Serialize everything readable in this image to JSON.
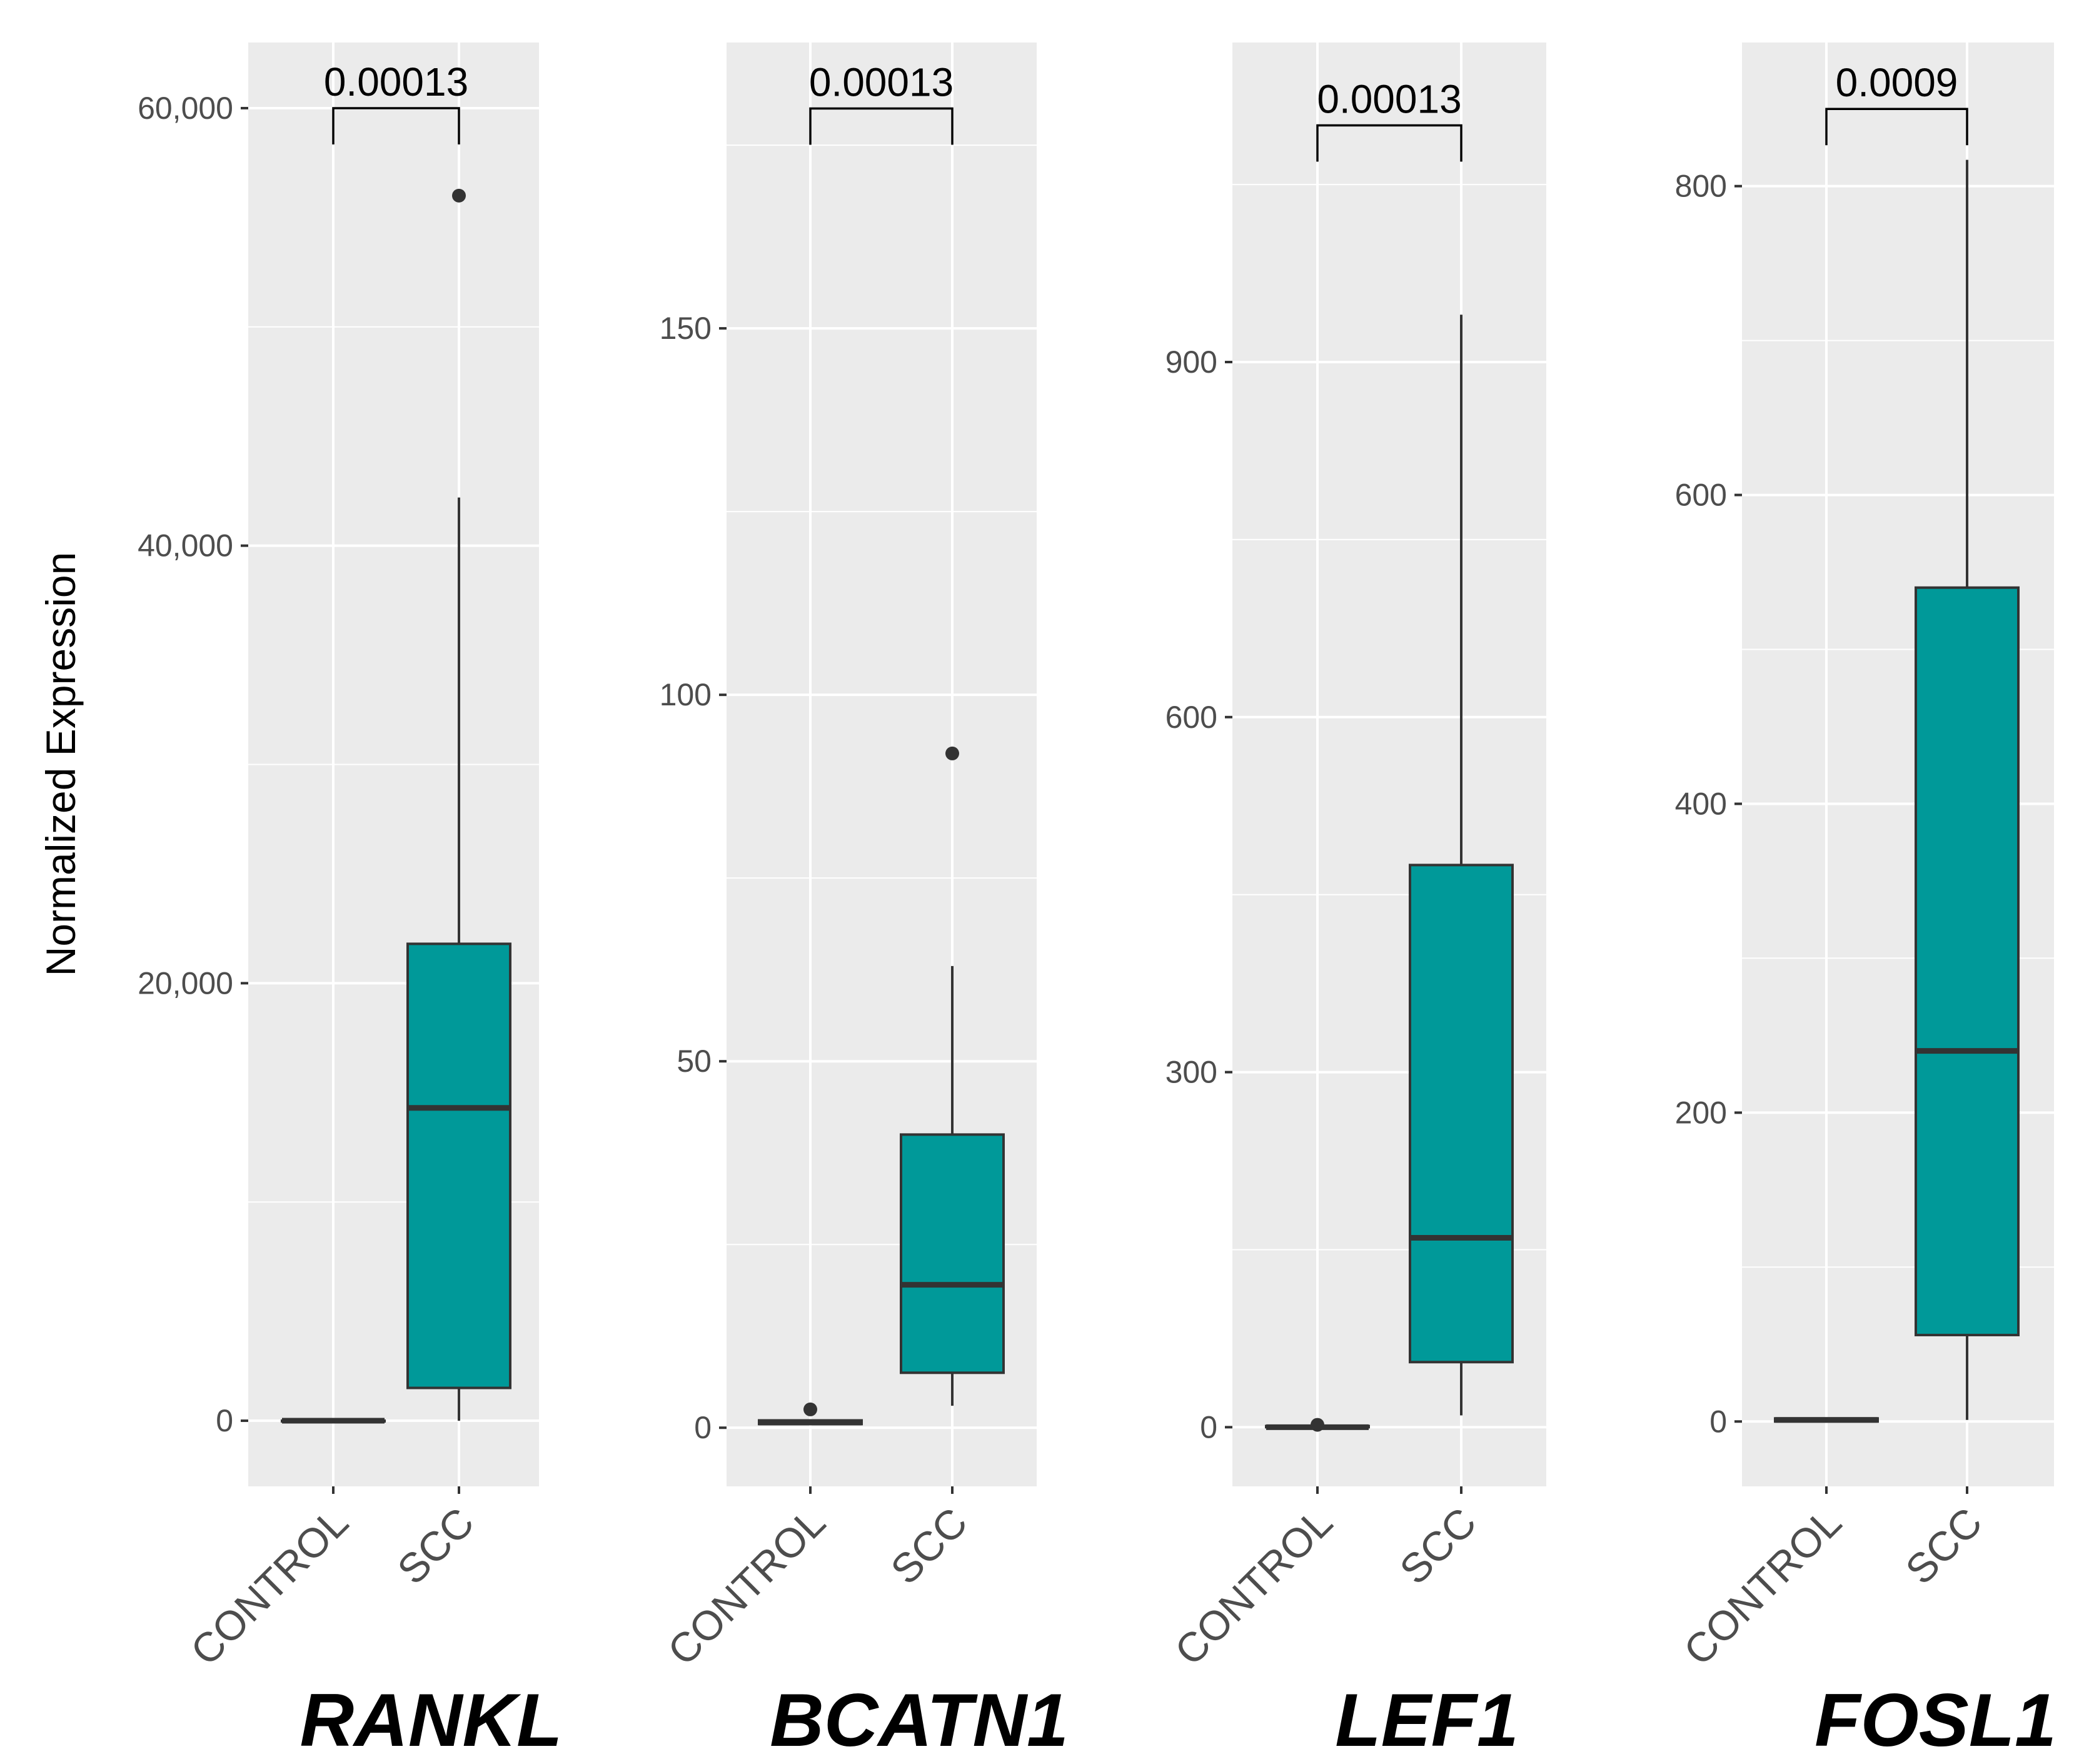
{
  "figure": {
    "ylabel": "Normalized Expression",
    "colors": {
      "panel_bg": "#ebebeb",
      "grid": "#ffffff",
      "box_fill": "#009999",
      "box_line": "#333333",
      "tick_text": "#4d4d4d"
    }
  },
  "chart_data": [
    {
      "type": "box",
      "title": "RANKL",
      "categories": [
        "CONTROL",
        "SCC"
      ],
      "ylim": [
        -3000,
        63000
      ],
      "yticks": [
        0,
        20000,
        40000,
        60000
      ],
      "ytick_labels": [
        "0",
        "20,000",
        "40,000",
        "60,000"
      ],
      "boxes": [
        {
          "group": "CONTROL",
          "whisker_low": 0,
          "q1": 0,
          "median": 0,
          "q3": 0,
          "whisker_high": 0,
          "outliers": []
        },
        {
          "group": "SCC",
          "whisker_low": 0,
          "q1": 1500,
          "median": 14300,
          "q3": 21800,
          "whisker_high": 42200,
          "outliers": [
            56000
          ]
        }
      ],
      "comparison": {
        "label": "0.00013",
        "y": 60000
      }
    },
    {
      "type": "box",
      "title": "BCATN1",
      "categories": [
        "CONTROL",
        "SCC"
      ],
      "ylim": [
        -8,
        189
      ],
      "yticks": [
        0,
        50,
        100,
        150
      ],
      "ytick_labels": [
        "0",
        "50",
        "100",
        "150"
      ],
      "boxes": [
        {
          "group": "CONTROL",
          "whisker_low": 0.5,
          "q1": 0.5,
          "median": 0.7,
          "q3": 1,
          "whisker_high": 1,
          "outliers": [
            2.5
          ]
        },
        {
          "group": "SCC",
          "whisker_low": 3,
          "q1": 7.5,
          "median": 19.5,
          "q3": 40,
          "whisker_high": 63,
          "outliers": [
            92
          ]
        }
      ],
      "comparison": {
        "label": "0.00013",
        "y": 180
      }
    },
    {
      "type": "box",
      "title": "LEF1",
      "categories": [
        "CONTROL",
        "SCC"
      ],
      "ylim": [
        -50,
        1170
      ],
      "yticks": [
        0,
        300,
        600,
        900
      ],
      "ytick_labels": [
        "0",
        "300",
        "600",
        "900"
      ],
      "boxes": [
        {
          "group": "CONTROL",
          "whisker_low": 0,
          "q1": 0,
          "median": 0,
          "q3": 1,
          "whisker_high": 1,
          "outliers": [
            2
          ]
        },
        {
          "group": "SCC",
          "whisker_low": 10,
          "q1": 55,
          "median": 160,
          "q3": 475,
          "whisker_high": 940,
          "outliers": []
        }
      ],
      "comparison": {
        "label": "0.00013",
        "y": 1100
      }
    },
    {
      "type": "box",
      "title": "FOSL1",
      "categories": [
        "CONTROL",
        "SCC"
      ],
      "ylim": [
        -42,
        893
      ],
      "yticks": [
        0,
        200,
        400,
        600,
        800
      ],
      "ytick_labels": [
        "0",
        "200",
        "400",
        "600",
        "800"
      ],
      "boxes": [
        {
          "group": "CONTROL",
          "whisker_low": 0,
          "q1": 0,
          "median": 1,
          "q3": 2,
          "whisker_high": 2,
          "outliers": []
        },
        {
          "group": "SCC",
          "whisker_low": 1,
          "q1": 56,
          "median": 240,
          "q3": 540,
          "whisker_high": 817,
          "outliers": []
        }
      ],
      "comparison": {
        "label": "0.0009",
        "y": 850
      }
    }
  ]
}
